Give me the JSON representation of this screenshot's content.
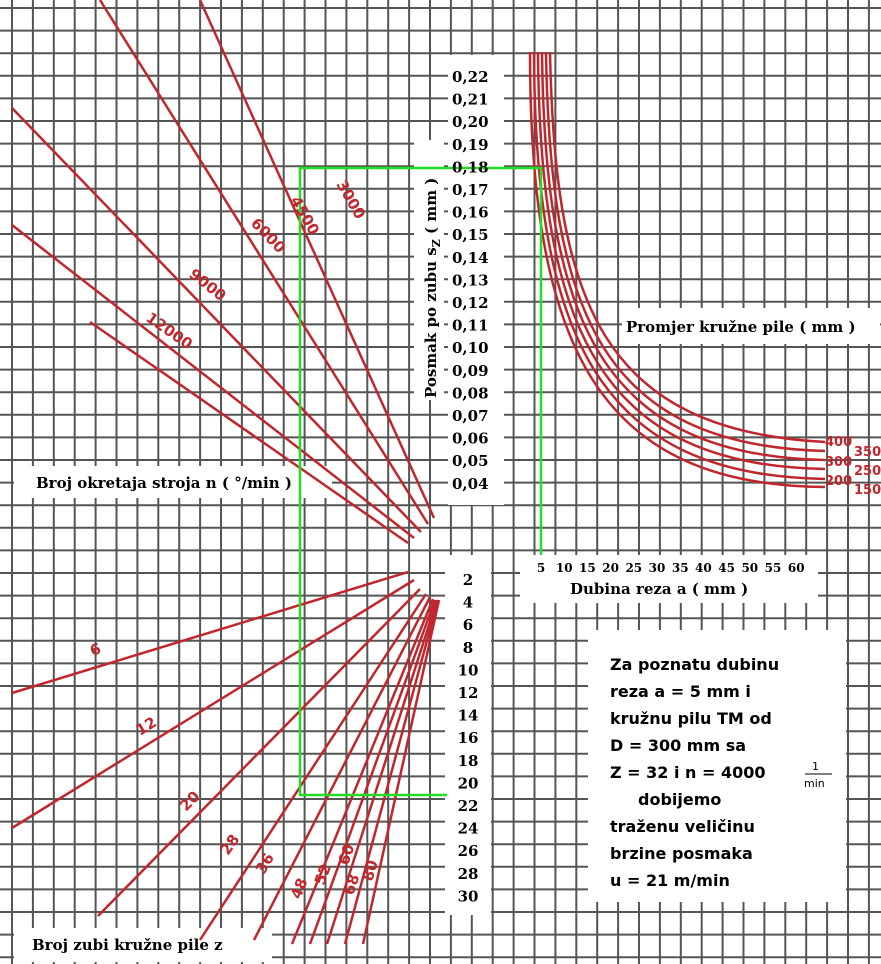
{
  "labels": {
    "rpm_axis": "Broj okretaja stroja n ( °/min )",
    "teeth_axis": "Broj zubi kružne pile z",
    "feed_axis_prefix": "Posmak po zubu s",
    "feed_axis_sub": "Z",
    "feed_axis_suffix": "( mm )",
    "diameter_label": "Promjer kružne pile ( mm )",
    "depth_label": "Dubina reza a ( mm )"
  },
  "feed_ticks": [
    "0,22",
    "0,21",
    "0,20",
    "0,19",
    "0,18",
    "0,17",
    "0,16",
    "0,15",
    "0,14",
    "0,13",
    "0,12",
    "0,11",
    "0,10",
    "0,09",
    "0,08",
    "0,07",
    "0,06",
    "0,05",
    "0,04"
  ],
  "teeth_ticks": [
    "2",
    "4",
    "6",
    "8",
    "10",
    "12",
    "14",
    "16",
    "18",
    "20",
    "22",
    "24",
    "26",
    "28",
    "30"
  ],
  "depth_ticks": [
    "5",
    "10",
    "15",
    "20",
    "25",
    "30",
    "35",
    "40",
    "45",
    "50",
    "55",
    "60"
  ],
  "rpm_lines": [
    "3000",
    "4500",
    "6000",
    "9000",
    "12000"
  ],
  "teeth_lines": [
    "6",
    "12",
    "20",
    "28",
    "36",
    "48",
    "52",
    "60",
    "68",
    "80"
  ],
  "diameter_left": [
    "400",
    "300",
    "200"
  ],
  "diameter_right": [
    "350",
    "250",
    "150"
  ],
  "note": {
    "l1": "Za poznatu dubinu",
    "l2": "reza a = 5   mm i",
    "l3": "kružnu pilu TM od",
    "l4": "D = 300 mm sa",
    "l5a": "Z = 32 i  n = 4000",
    "l5num": "1",
    "l5den": "min",
    "l6": "dobijemo",
    "l7": "traženu veličinu",
    "l8": "brzine posmaka",
    "l9": "u = 21  m/min"
  },
  "colors": {
    "curves": "#c0272d",
    "solution_path": "#22dd22",
    "grid": "#555555"
  }
}
